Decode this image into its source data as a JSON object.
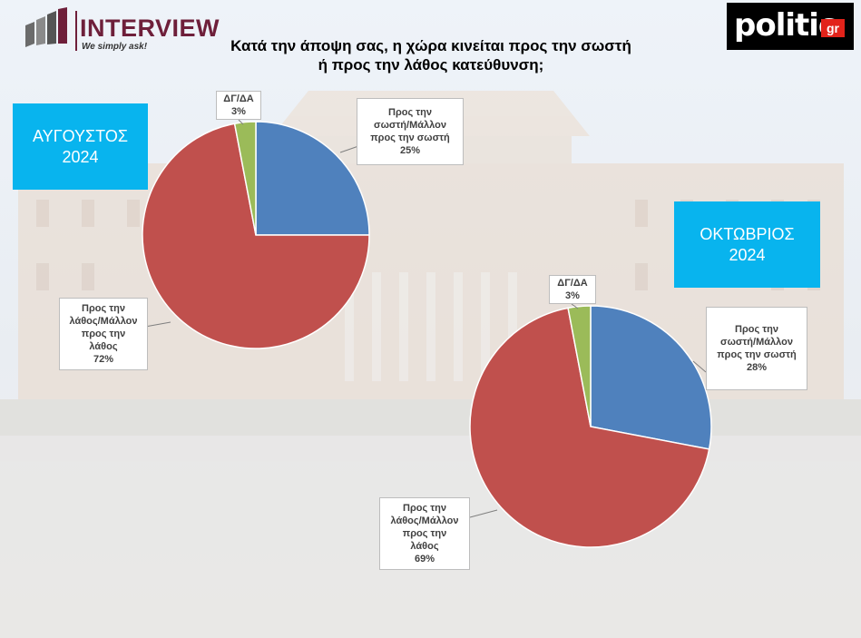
{
  "header": {
    "brand_name": "INTERVIEW",
    "brand_tagline": "We simply ask!",
    "publisher_logo": "politic",
    "publisher_logo_suffix": "gr",
    "title": "Κατά την άποψη σας, η χώρα κινείται προς την σωστή ή προς την λάθος κατεύθυνση;"
  },
  "colors": {
    "right_direction": "#4f81bd",
    "wrong_direction": "#c0504d",
    "dk_na": "#9bbb59",
    "period_box": "#08b4ee",
    "brand": "#6e1f3a"
  },
  "chart_data": [
    {
      "type": "pie",
      "title": "ΑΥΓΟΥΣΤΟΣ\n2024",
      "slices": [
        {
          "label": "Προς την\nσωστή/Μάλλον\nπρος την σωστή",
          "value": 25,
          "value_label": "25%"
        },
        {
          "label": "Προς την\nλάθος/Μάλλον\nπρος την\nλάθος",
          "value": 72,
          "value_label": "72%"
        },
        {
          "label": "ΔΓ/ΔΑ",
          "value": 3,
          "value_label": "3%"
        }
      ]
    },
    {
      "type": "pie",
      "title": "ΟΚΤΩΒΡΙΟΣ\n2024",
      "slices": [
        {
          "label": "Προς την\nσωστή/Μάλλον\nπρος την σωστή",
          "value": 28,
          "value_label": "28%"
        },
        {
          "label": "Προς την\nλάθος/Μάλλον\nπρος την\nλάθος",
          "value": 69,
          "value_label": "69%"
        },
        {
          "label": "ΔΓ/ΔΑ",
          "value": 3,
          "value_label": "3%"
        }
      ]
    }
  ]
}
